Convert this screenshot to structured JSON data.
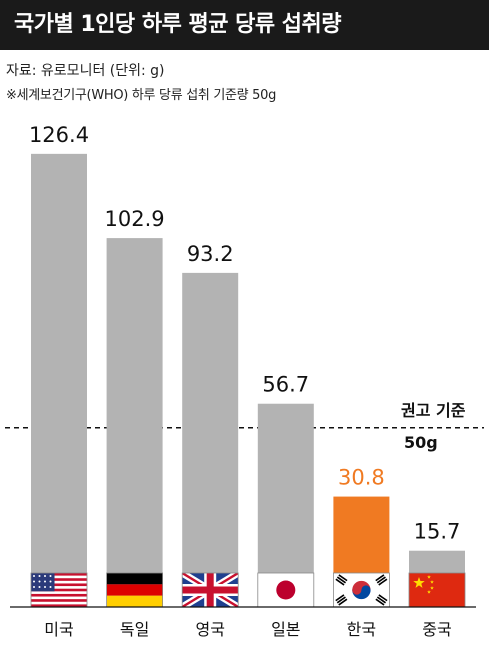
{
  "header": {
    "title": "국가별 1인당 하루 평균 당류 섭취량",
    "source": "자료: 유로모니터 (단위: g)",
    "note": "※세계보건기구(WHO) 하루 당류 섭취 기준량 50g"
  },
  "chart_data": {
    "type": "bar",
    "title": "국가별 1인당 하루 평균 당류 섭취량",
    "unit": "g",
    "categories": [
      "미국",
      "독일",
      "영국",
      "일본",
      "한국",
      "중국"
    ],
    "values": [
      126.4,
      102.9,
      93.2,
      56.7,
      30.8,
      15.7
    ],
    "value_labels": [
      "126.4",
      "102.9",
      "93.2",
      "56.7",
      "30.8",
      "15.7"
    ],
    "flags": [
      "us-flag-icon",
      "germany-flag-icon",
      "uk-flag-icon",
      "japan-flag-icon",
      "korea-flag-icon",
      "china-flag-icon"
    ],
    "highlight_index": 4,
    "reference_line": {
      "value": 50,
      "label_line1": "권고 기준",
      "label_line2": "50g"
    },
    "ylim": [
      0,
      140
    ],
    "grid": false,
    "colors": {
      "bar": "#b3b3b3",
      "highlight": "#f07a22",
      "highlight_text": "#f07a22",
      "reference": "#111111"
    }
  }
}
